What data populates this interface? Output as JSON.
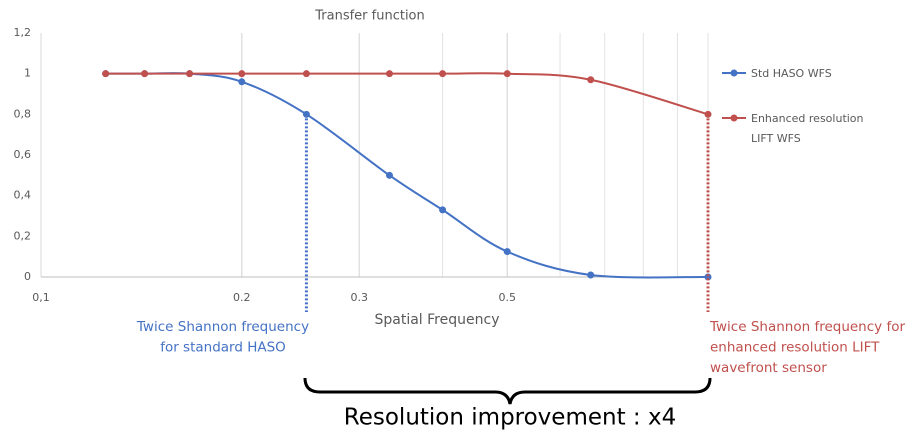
{
  "chart_data": {
    "type": "line",
    "title": "Transfer function",
    "x_label": "Spatial Frequency",
    "x": [
      0.125,
      0.143,
      0.167,
      0.2,
      0.25,
      0.333,
      0.4,
      0.5,
      0.667,
      1.0
    ],
    "series": [
      {
        "name": "Std HASO WFS",
        "color": "#4472c4",
        "values": [
          1,
          1,
          1,
          0.96,
          0.8,
          0.5,
          0.33,
          0.125,
          0.01,
          0
        ]
      },
      {
        "name": "Enhanced resolution LIFT WFS",
        "color": "#c0504d",
        "values": [
          1,
          1,
          1,
          1,
          1,
          1,
          1,
          1,
          0.97,
          0.8
        ]
      }
    ],
    "log_x": true,
    "xlim": [
      0.1,
      1.0
    ],
    "xticks": [
      {
        "value": 0.1,
        "label": "0,1"
      },
      0.2,
      0.3,
      0.5
    ],
    "ylim": [
      0,
      1.2
    ],
    "yticks": [
      0,
      {
        "value": 0.2,
        "label": "0,2"
      },
      {
        "value": 0.4,
        "label": "0,4"
      },
      {
        "value": 0.6,
        "label": "0,6"
      },
      {
        "value": 0.8,
        "label": "0,8"
      },
      1,
      {
        "value": 1.2,
        "label": "1,2"
      }
    ],
    "legend": "right",
    "annotations": [
      {
        "lines": [
          "Twice Shannon frequency",
          "for standard HASO"
        ],
        "color": "#4472c4"
      },
      {
        "lines": [
          "Twice Shannon frequency for",
          "enhanced resolution LIFT",
          "wavefront sensor"
        ],
        "color": "#c0504d"
      }
    ],
    "footer": "Resolution improvement : x4"
  }
}
